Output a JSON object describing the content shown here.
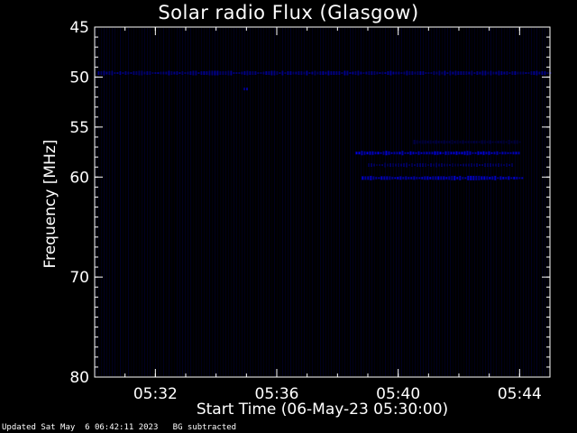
{
  "chart_data": {
    "type": "heatmap",
    "title": "Solar radio Flux (Glasgow)",
    "xlabel": "Start Time (06-May-23 05:30:00)",
    "ylabel": "Frequency [MHz]",
    "x_unit": "minutes",
    "xlim": [
      0,
      15
    ],
    "ylim": [
      45,
      80
    ],
    "y_reversed": true,
    "x_ticks": [
      {
        "value": 2,
        "label": "05:32"
      },
      {
        "value": 6,
        "label": "05:36"
      },
      {
        "value": 10,
        "label": "05:40"
      },
      {
        "value": 14,
        "label": "05:44"
      }
    ],
    "y_ticks": [
      {
        "value": 45,
        "label": "45"
      },
      {
        "value": 50,
        "label": "50"
      },
      {
        "value": 55,
        "label": "55"
      },
      {
        "value": 60,
        "label": "60"
      },
      {
        "value": 70,
        "label": "70"
      },
      {
        "value": 80,
        "label": "80"
      }
    ],
    "grid": false,
    "colors": {
      "background": "#000000",
      "signal": "#0000ff",
      "axes": "#ffffff"
    },
    "features": [
      {
        "name": "interference band",
        "freq": 49.6,
        "t_start": 0.1,
        "t_end": 15.0,
        "intensity": 0.55
      },
      {
        "name": "emission band",
        "freq": 57.6,
        "t_start": 8.6,
        "t_end": 14.0,
        "intensity": 0.9
      },
      {
        "name": "emission band",
        "freq": 60.1,
        "t_start": 8.8,
        "t_end": 14.1,
        "intensity": 0.85
      },
      {
        "name": "emission band",
        "freq": 58.8,
        "t_start": 9.0,
        "t_end": 13.8,
        "intensity": 0.35
      },
      {
        "name": "emission band",
        "freq": 56.5,
        "t_start": 10.5,
        "t_end": 14.0,
        "intensity": 0.25
      },
      {
        "name": "burst",
        "freq": 51.2,
        "t_start": 4.9,
        "t_end": 5.0,
        "intensity": 0.7
      }
    ]
  },
  "footer": {
    "updated": "Updated Sat May  6 06:42:11 2023",
    "note": "BG subtracted"
  }
}
